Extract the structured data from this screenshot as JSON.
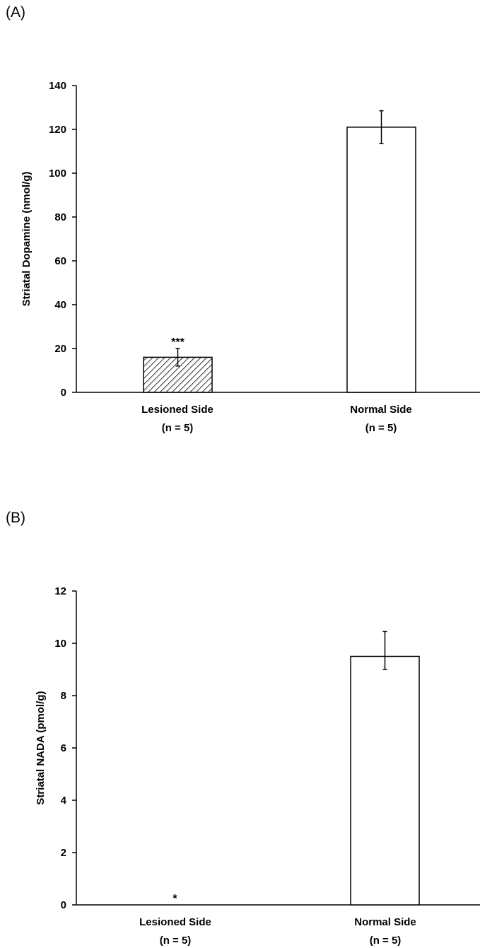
{
  "chart_data": [
    {
      "type": "bar",
      "panel_label": "(A)",
      "ylabel": "Striatal Dopamine (nmol/g)",
      "ylim": [
        0,
        140
      ],
      "yticks": [
        0,
        20,
        40,
        60,
        80,
        100,
        120,
        140
      ],
      "categories": [
        {
          "line1": "Lesioned Side",
          "line2": "(n = 5)"
        },
        {
          "line1": "Normal Side",
          "line2": "(n = 5)"
        }
      ],
      "values": [
        16,
        121
      ],
      "errors": [
        4,
        7.5
      ],
      "fills": [
        "hatched",
        "white"
      ],
      "annotations": [
        "***",
        ""
      ]
    },
    {
      "type": "bar",
      "panel_label": "(B)",
      "ylabel": "Striatal NADA (pmol/g)",
      "ylim": [
        0,
        12
      ],
      "yticks": [
        0,
        2,
        4,
        6,
        8,
        10,
        12
      ],
      "categories": [
        {
          "line1": "Lesioned Side",
          "line2": "(n = 5)"
        },
        {
          "line1": "Normal Side",
          "line2": "(n = 5)"
        }
      ],
      "values": [
        0,
        9.5
      ],
      "errors": [
        0,
        0.5
      ],
      "error_upper": [
        0,
        0.95
      ],
      "fills": [
        "white",
        "white"
      ],
      "annotations": [
        "*",
        ""
      ]
    }
  ]
}
